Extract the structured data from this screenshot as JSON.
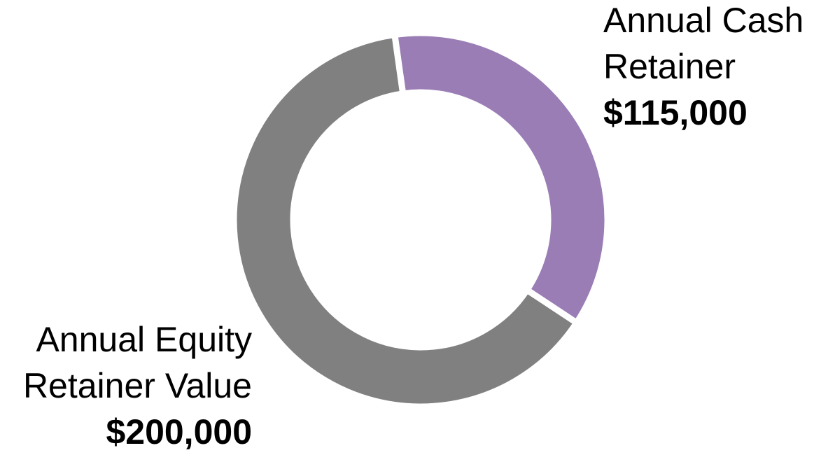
{
  "chart_data": {
    "type": "donut",
    "categories": [
      "Annual Cash Retainer",
      "Annual Equity Retainer Value"
    ],
    "values": [
      115000,
      200000
    ],
    "value_labels": [
      "$115,000",
      "$200,000"
    ],
    "colors": [
      "#9a7db5",
      "#808080"
    ]
  }
}
